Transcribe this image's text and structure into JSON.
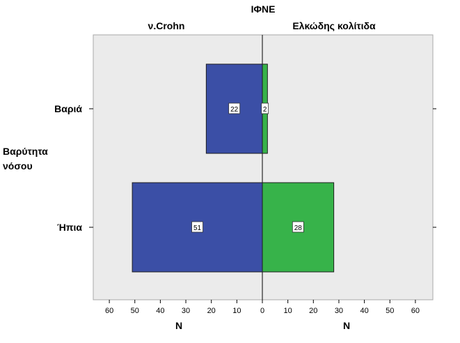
{
  "chart_data": {
    "type": "bar",
    "orientation": "horizontal",
    "layout": "population-pyramid",
    "title": "ΙΦΝΕ",
    "panels": [
      "ν.Crohn",
      "Ελκώδης κολίτιδα"
    ],
    "ylabel": "Βαρύτητα νόσου",
    "xlabel": "N",
    "categories": [
      "Βαριά",
      "Ήπια"
    ],
    "series": [
      {
        "name": "ν.Crohn",
        "values": [
          22,
          51
        ],
        "color": "#3b4fa6"
      },
      {
        "name": "Ελκώδης κολίτιδα",
        "values": [
          2,
          28
        ],
        "color": "#37b34a"
      }
    ],
    "ticks": [
      0,
      10,
      20,
      30,
      40,
      50,
      60
    ],
    "xlim": [
      0,
      66
    ],
    "grid": false,
    "legend": "none",
    "plot_background": "#ebebeb"
  }
}
